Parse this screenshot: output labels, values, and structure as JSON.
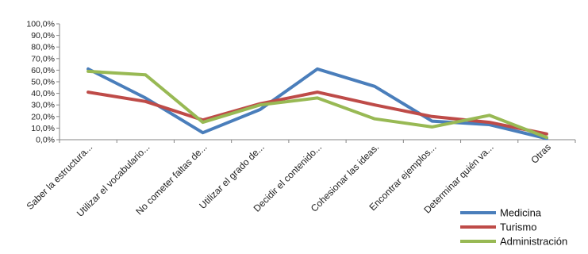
{
  "chart_data": {
    "type": "line",
    "categories": [
      "Saber la estructura...",
      "Utilizar el vocabulario...",
      "No cometer faltas de...",
      "Utilizar el grado de...",
      "Decidir el contenido...",
      "Cohesionar las ideas.",
      "Encontrar ejemplos...",
      "Determinar quién va...",
      "Otras"
    ],
    "series": [
      {
        "name": "Medicina",
        "color": "#4a7ebb",
        "values": [
          61,
          36,
          6,
          26,
          61,
          46,
          16,
          13,
          1
        ]
      },
      {
        "name": "Turismo",
        "color": "#be4b48",
        "values": [
          41,
          33,
          17,
          31,
          41,
          30,
          20,
          15,
          5
        ]
      },
      {
        "name": "Administración",
        "color": "#98b954",
        "values": [
          59,
          56,
          15,
          30,
          36,
          18,
          11,
          21,
          2
        ]
      }
    ],
    "yticks": [
      "0,0%",
      "10,0%",
      "20,0%",
      "30,0%",
      "40,0%",
      "50,0%",
      "60,0%",
      "70,0%",
      "80,0%",
      "90,0%",
      "100,0%"
    ],
    "ylim": [
      0,
      100
    ],
    "legend_position": "bottom-right",
    "grid": false
  }
}
